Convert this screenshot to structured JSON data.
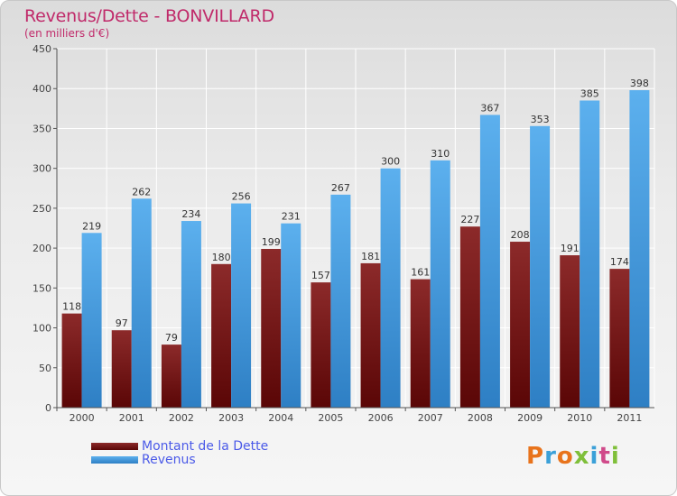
{
  "header": {
    "title": "Revenus/Dette - BONVILLARD",
    "subtitle": "(en milliers d'€)"
  },
  "legend": [
    {
      "label": "Montant de la Dette",
      "color": "#7a1515"
    },
    {
      "label": "Revenus",
      "color": "#4aa3e6"
    }
  ],
  "logo": {
    "text": "Proxiti",
    "colors": [
      "#e8731c",
      "#3ba0d8",
      "#e8731c",
      "#7fbf3a",
      "#3ba0d8",
      "#d04a8a",
      "#7fbf3a"
    ]
  },
  "chart_data": {
    "type": "bar",
    "title": "Revenus/Dette - BONVILLARD",
    "subtitle": "(en milliers d'€)",
    "categories": [
      "2000",
      "2001",
      "2002",
      "2003",
      "2004",
      "2005",
      "2006",
      "2007",
      "2008",
      "2009",
      "2010",
      "2011"
    ],
    "series": [
      {
        "name": "Montant de la Dette",
        "color": "#7a1515",
        "values": [
          118,
          97,
          79,
          180,
          199,
          157,
          181,
          161,
          227,
          208,
          191,
          174
        ]
      },
      {
        "name": "Revenus",
        "color": "#4aa3e6",
        "values": [
          219,
          262,
          234,
          256,
          231,
          267,
          300,
          310,
          367,
          353,
          385,
          398
        ]
      }
    ],
    "ylim": [
      0,
      450
    ],
    "yticks": [
      0,
      50,
      100,
      150,
      200,
      250,
      300,
      350,
      400,
      450
    ],
    "grid": true,
    "legend_position": "bottom-left"
  }
}
